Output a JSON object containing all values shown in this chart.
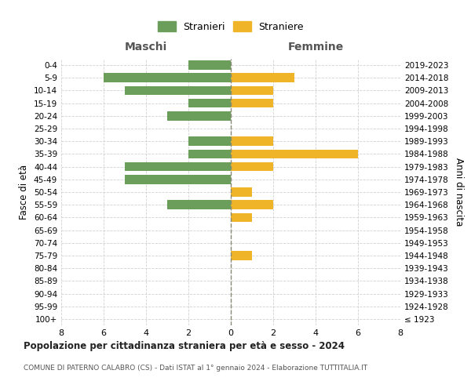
{
  "age_groups": [
    "100+",
    "95-99",
    "90-94",
    "85-89",
    "80-84",
    "75-79",
    "70-74",
    "65-69",
    "60-64",
    "55-59",
    "50-54",
    "45-49",
    "40-44",
    "35-39",
    "30-34",
    "25-29",
    "20-24",
    "15-19",
    "10-14",
    "5-9",
    "0-4"
  ],
  "birth_years": [
    "≤ 1923",
    "1924-1928",
    "1929-1933",
    "1934-1938",
    "1939-1943",
    "1944-1948",
    "1949-1953",
    "1954-1958",
    "1959-1963",
    "1964-1968",
    "1969-1973",
    "1974-1978",
    "1979-1983",
    "1984-1988",
    "1989-1993",
    "1994-1998",
    "1999-2003",
    "2004-2008",
    "2009-2013",
    "2014-2018",
    "2019-2023"
  ],
  "males": [
    0,
    0,
    0,
    0,
    0,
    0,
    0,
    0,
    0,
    3,
    0,
    5,
    5,
    2,
    2,
    0,
    3,
    2,
    5,
    6,
    2
  ],
  "females": [
    0,
    0,
    0,
    0,
    0,
    1,
    0,
    0,
    1,
    2,
    1,
    0,
    2,
    6,
    2,
    0,
    0,
    2,
    2,
    3,
    0
  ],
  "male_color": "#6a9e5a",
  "female_color": "#f0b429",
  "title": "Popolazione per cittadinanza straniera per età e sesso - 2024",
  "subtitle": "COMUNE DI PATERNO CALABRO (CS) - Dati ISTAT al 1° gennaio 2024 - Elaborazione TUTTITALIA.IT",
  "ylabel_left": "Fasce di età",
  "ylabel_right": "Anni di nascita",
  "xlabel_left": "Maschi",
  "xlabel_right": "Femmine",
  "legend_male": "Stranieri",
  "legend_female": "Straniere",
  "xlim": 8,
  "background_color": "#ffffff",
  "grid_color": "#cccccc"
}
